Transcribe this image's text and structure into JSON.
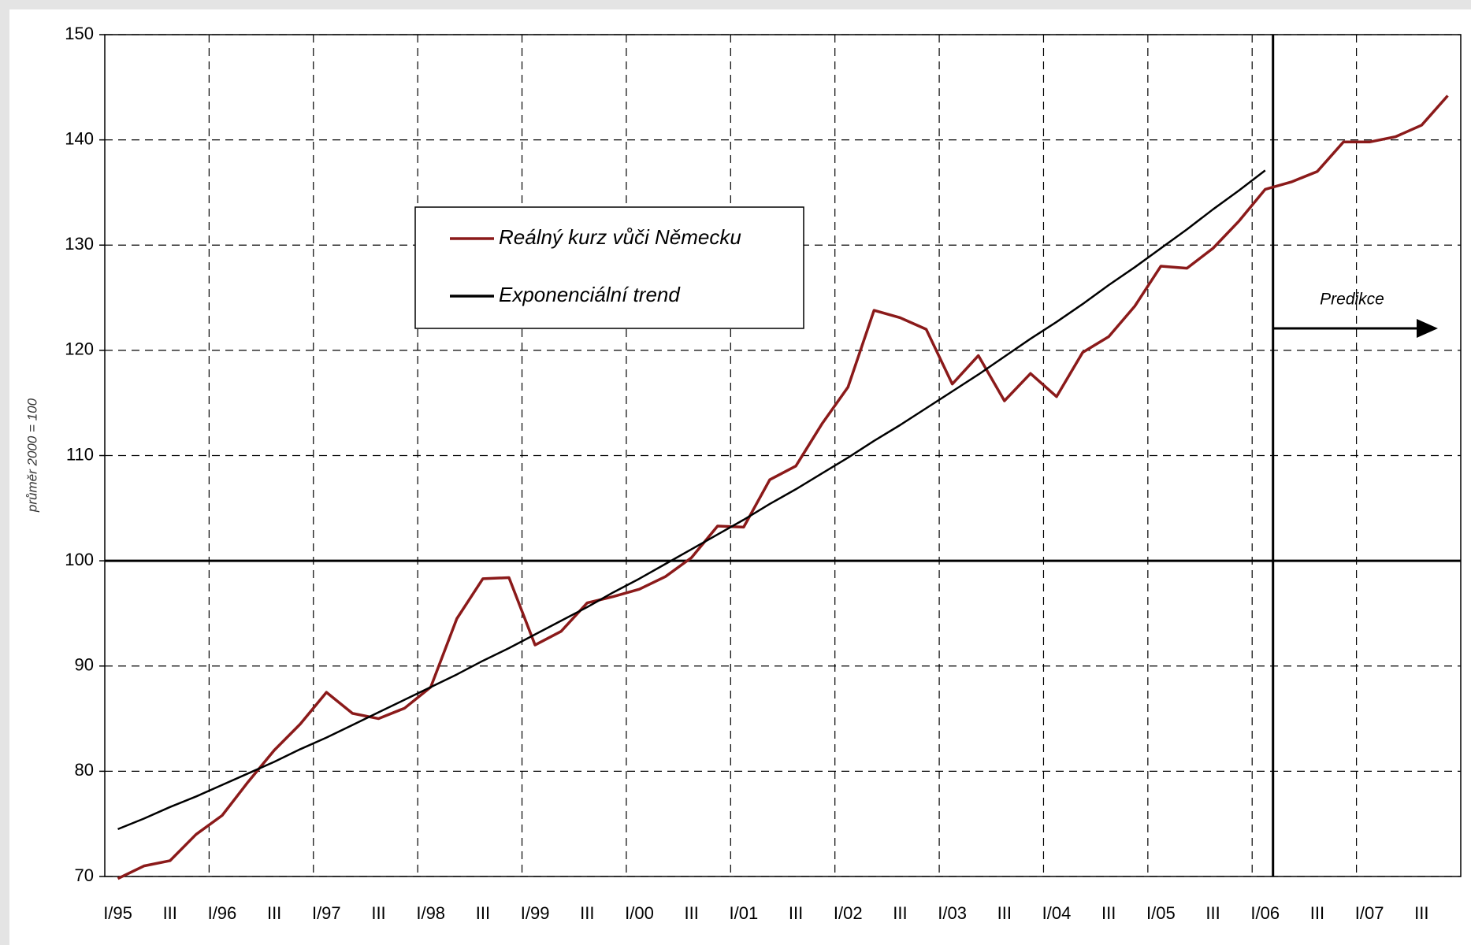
{
  "chart_data": {
    "type": "line",
    "y_label": "průměr 2000 = 100",
    "categories": [
      "I/95",
      null,
      "III",
      null,
      "I/96",
      null,
      "III",
      null,
      "I/97",
      null,
      "III",
      null,
      "I/98",
      null,
      "III",
      null,
      "I/99",
      null,
      "III",
      null,
      "I/00",
      null,
      "III",
      null,
      "I/01",
      null,
      "III",
      null,
      "I/02",
      null,
      "III",
      null,
      "I/03",
      null,
      "III",
      null,
      "I/04",
      null,
      "III",
      null,
      "I/05",
      null,
      "III",
      null,
      "I/06",
      null,
      "III",
      null,
      "I/07",
      null,
      "III",
      null
    ],
    "series": [
      {
        "name": "Reálný kurz vůči Německu",
        "color": "#8b1a1a",
        "values": [
          69.8,
          71,
          71.5,
          74,
          75.8,
          79,
          82,
          84.5,
          87.5,
          85.5,
          85,
          86,
          88,
          94.5,
          98.3,
          98.4,
          92,
          93.3,
          96,
          96.6,
          97.3,
          98.5,
          100.3,
          103.3,
          103.2,
          107.7,
          109,
          113,
          116.5,
          123.8,
          123.1,
          122,
          116.8,
          119.5,
          115.2,
          117.8,
          115.6,
          119.8,
          121.3,
          124.2,
          128,
          127.8,
          129.7,
          132.3,
          135.3,
          136,
          137,
          139.8,
          139.8,
          140.3,
          141.4,
          144.2
        ]
      },
      {
        "name": "Exponenciální trend",
        "color": "#000000",
        "values": [
          74.5,
          75.5,
          76.6,
          77.6,
          78.7,
          79.8,
          80.9,
          82.1,
          83.2,
          84.4,
          85.6,
          86.8,
          88.0,
          89.2,
          90.5,
          91.7,
          93.0,
          94.3,
          95.6,
          97.0,
          98.3,
          99.7,
          101.1,
          102.5,
          103.9,
          105.4,
          106.8,
          108.3,
          109.8,
          111.4,
          112.9,
          114.5,
          116.1,
          117.7,
          119.4,
          121.1,
          122.7,
          124.4,
          126.2,
          127.9,
          129.7,
          131.5,
          133.4,
          135.2,
          137.1,
          null,
          null,
          null,
          null,
          null,
          null,
          null
        ]
      }
    ],
    "ylim": [
      70,
      150
    ],
    "yticks": [
      70,
      80,
      90,
      100,
      110,
      120,
      130,
      140,
      150
    ],
    "reference_line": 100,
    "grid": true,
    "annotation": "Predikce"
  }
}
